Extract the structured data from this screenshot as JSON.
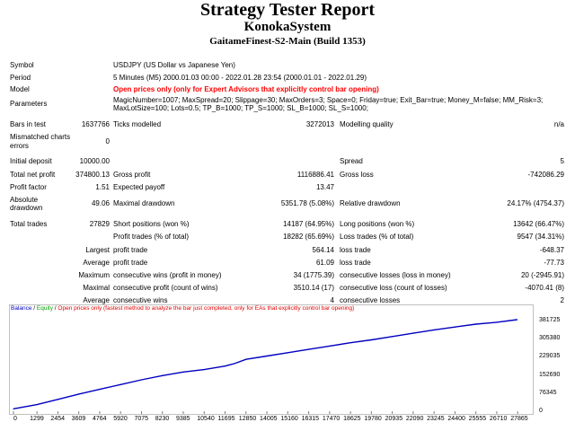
{
  "header": {
    "title": "Strategy Tester Report",
    "system": "KonokaSystem",
    "server": "GaitameFinest-S2-Main (Build 1353)"
  },
  "info": {
    "symbol_label": "Symbol",
    "symbol_value": "USDJPY (US Dollar vs Japanese Yen)",
    "period_label": "Period",
    "period_value": "5 Minutes (M5) 2000.01.03 00:00 - 2022.01.28 23:54 (2000.01.01 - 2022.01.29)",
    "model_label": "Model",
    "model_value": "Open prices only (only for Expert Advisors that explicitly control bar opening)",
    "parameters_label": "Parameters",
    "parameters_line1": "MagicNumber=1007; MaxSpread=20; Slippage=30; MaxOrders=3; Space=0; Friday=true; Exit_Bar=true; Money_M=false; MM_Risk=3;",
    "parameters_line2": "MaxLotSize=100; Lots=0.5; TP_B=1000; TP_S=1000; SL_B=1000; SL_S=1000;"
  },
  "bars": {
    "bars_label": "Bars in test",
    "bars_value": "1637766",
    "ticks_label": "Ticks modelled",
    "ticks_value": "3272013",
    "quality_label": "Modelling quality",
    "quality_value": "n/a",
    "mismatch_label_1": "Mismatched charts",
    "mismatch_label_2": "errors",
    "mismatch_value": "0"
  },
  "stats": {
    "initial_deposit_label": "Initial deposit",
    "initial_deposit_value": "10000.00",
    "spread_label": "Spread",
    "spread_value": "5",
    "net_profit_label": "Total net profit",
    "net_profit_value": "374800.13",
    "gross_profit_label": "Gross profit",
    "gross_profit_value": "1116886.41",
    "gross_loss_label": "Gross loss",
    "gross_loss_value": "-742086.29",
    "profit_factor_label": "Profit factor",
    "profit_factor_value": "1.51",
    "expected_payoff_label": "Expected payoff",
    "expected_payoff_value": "13.47",
    "abs_dd_label_1": "Absolute",
    "abs_dd_label_2": "drawdown",
    "abs_dd_value": "49.06",
    "max_dd_label": "Maximal drawdown",
    "max_dd_value": "5351.78 (5.08%)",
    "rel_dd_label": "Relative drawdown",
    "rel_dd_value": "24.17% (4754.37)",
    "total_trades_label": "Total trades",
    "total_trades_value": "27829",
    "short_label": "Short positions (won %)",
    "short_value": "14187 (64.95%)",
    "long_label": "Long positions (won %)",
    "long_value": "13642 (66.47%)",
    "profit_trades_label": "Profit trades (% of total)",
    "profit_trades_value": "18282 (65.69%)",
    "loss_trades_label": "Loss trades (% of total)",
    "loss_trades_value": "9547 (34.31%)",
    "largest_label": "Largest",
    "largest_profit_label": "profit trade",
    "largest_profit_value": "564.14",
    "largest_loss_label": "loss trade",
    "largest_loss_value": "-648.37",
    "average_label": "Average",
    "average_profit_label": "profit trade",
    "average_profit_value": "61.09",
    "average_loss_label": "loss trade",
    "average_loss_value": "-77.73",
    "maximum_label": "Maximum",
    "max_cons_wins_label": "consecutive wins (profit in money)",
    "max_cons_wins_value": "34 (1775.39)",
    "max_cons_losses_label": "consecutive losses (loss in money)",
    "max_cons_losses_value": "20 (-2945.91)",
    "maximal_label": "Maximal",
    "maximal_profit_label": "consecutive profit (count of wins)",
    "maximal_profit_value": "3510.14 (17)",
    "maximal_loss_label": "consecutive loss (count of losses)",
    "maximal_loss_value": "-4070.41 (8)",
    "avg_cons_label": "Average",
    "avg_cons_wins_label": "consecutive wins",
    "avg_cons_wins_value": "4",
    "avg_cons_losses_label": "consecutive losses",
    "avg_cons_losses_value": "2"
  },
  "chart_legend": {
    "balance": "Balance",
    "sep1": " / ",
    "equity": "Equity",
    "sep2": " / ",
    "note": "Open prices only (fastest method to analyze the bar just completed, only for EAs that explicitly control bar opening)"
  },
  "chart_data": {
    "type": "line",
    "series": [
      {
        "name": "Balance",
        "x": [
          0,
          1299,
          2454,
          3609,
          4764,
          5920,
          7075,
          8230,
          9385,
          10540,
          11695,
          12200,
          12850,
          14005,
          15160,
          16315,
          17470,
          18625,
          19780,
          20935,
          22090,
          23245,
          24400,
          25555,
          26710,
          27829
        ],
        "y": [
          10000,
          28000,
          50000,
          72000,
          92000,
          112000,
          132000,
          150000,
          165000,
          175000,
          190000,
          200000,
          218000,
          232000,
          246000,
          260000,
          274000,
          288000,
          300000,
          314000,
          328000,
          342000,
          354000,
          366000,
          374000,
          384800
        ]
      }
    ],
    "x_ticks": [
      "0",
      "1299",
      "2454",
      "3609",
      "4764",
      "5920",
      "7075",
      "8230",
      "9385",
      "10540",
      "11695",
      "12850",
      "14005",
      "15160",
      "16315",
      "17470",
      "18625",
      "19780",
      "20935",
      "22090",
      "23245",
      "24400",
      "25555",
      "26710",
      "27865"
    ],
    "y_ticks": [
      "381725",
      "305380",
      "229035",
      "152690",
      "76345",
      "0"
    ],
    "xlim": [
      0,
      28600
    ],
    "ylim": [
      0,
      400000
    ],
    "line_color": "#0000c0",
    "grid": false
  }
}
